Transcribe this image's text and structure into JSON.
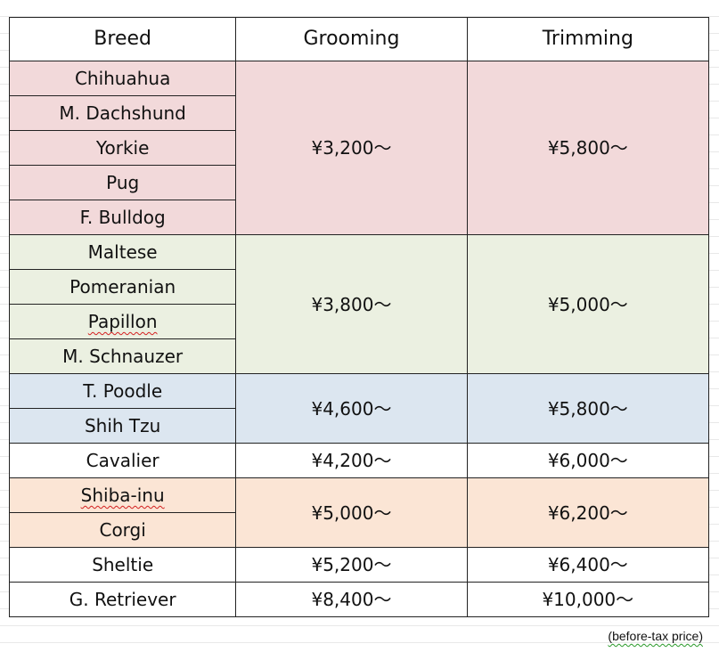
{
  "table": {
    "headers": {
      "breed": "Breed",
      "grooming": "Grooming",
      "trimming": "Trimming"
    },
    "groups": [
      {
        "color": "#f2d9da",
        "breeds": [
          "Chihuahua",
          "M. Dachshund",
          "Yorkie",
          "Pug",
          "F. Bulldog"
        ],
        "grooming": "¥3,200〜",
        "trimming": "¥5,800〜"
      },
      {
        "color": "#ebf0e1",
        "breeds": [
          "Maltese",
          "Pomeranian",
          "Papillon",
          "M. Schnauzer"
        ],
        "grooming": "¥3,800〜",
        "trimming": "¥5,000〜"
      },
      {
        "color": "#dce6f0",
        "breeds": [
          "T. Poodle",
          "Shih Tzu"
        ],
        "grooming": "¥4,600〜",
        "trimming": "¥5,800〜"
      },
      {
        "color": "#ffffff",
        "breeds": [
          "Cavalier"
        ],
        "grooming": "¥4,200〜",
        "trimming": "¥6,000〜"
      },
      {
        "color": "#fbe5d5",
        "breeds": [
          "Shiba-inu",
          "Corgi"
        ],
        "grooming": "¥5,000〜",
        "trimming": "¥6,200〜"
      },
      {
        "color": "#ffffff",
        "breeds": [
          "Sheltie"
        ],
        "grooming": "¥5,200〜",
        "trimming": "¥6,400〜"
      },
      {
        "color": "#ffffff",
        "breeds": [
          "G. Retriever"
        ],
        "grooming": "¥8,400〜",
        "trimming": "¥10,000〜"
      }
    ]
  },
  "footnote": {
    "text": "(before-tax price)"
  }
}
